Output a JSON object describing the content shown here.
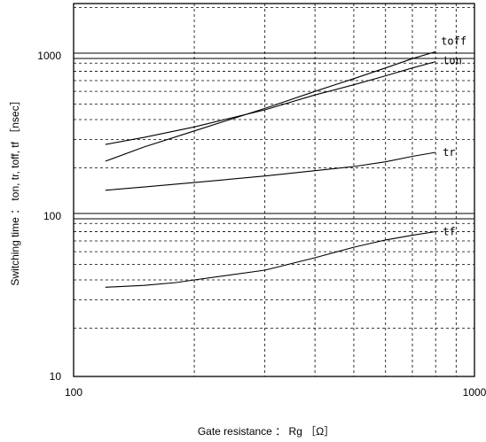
{
  "chart_data": {
    "type": "line",
    "xlabel": "Gate resistance ： Rg ［Ω］",
    "ylabel": "Switching time ： ton, tr, toff, tf ［nsec］",
    "xscale": "log",
    "yscale": "log",
    "xlim": [
      100,
      1000
    ],
    "ylim": [
      10,
      2000
    ],
    "grid": true,
    "x_ticks": [
      {
        "value": 100,
        "label": "100"
      },
      {
        "value": 1000,
        "label": "1000"
      }
    ],
    "y_ticks": [
      {
        "value": 10,
        "label": "10"
      },
      {
        "value": 100,
        "label": "100"
      },
      {
        "value": 1000,
        "label": "1000"
      }
    ],
    "series": [
      {
        "name": "toff",
        "x": [
          120,
          150,
          200,
          300,
          400,
          500,
          600,
          700,
          800
        ],
        "y": [
          220,
          270,
          340,
          470,
          600,
          720,
          840,
          960,
          1060
        ]
      },
      {
        "name": "ton",
        "x": [
          120,
          150,
          200,
          300,
          400,
          500,
          600,
          700,
          800
        ],
        "y": [
          280,
          310,
          360,
          460,
          570,
          660,
          750,
          840,
          920
        ]
      },
      {
        "name": "tr",
        "x": [
          120,
          150,
          200,
          300,
          400,
          500,
          600,
          700,
          800
        ],
        "y": [
          145,
          152,
          162,
          178,
          192,
          204,
          218,
          236,
          250
        ]
      },
      {
        "name": "tf",
        "x": [
          120,
          150,
          180,
          200,
          300,
          400,
          500,
          600,
          700,
          800
        ],
        "y": [
          36,
          37,
          38.5,
          40,
          46,
          55,
          64,
          71,
          76,
          80
        ]
      }
    ]
  }
}
